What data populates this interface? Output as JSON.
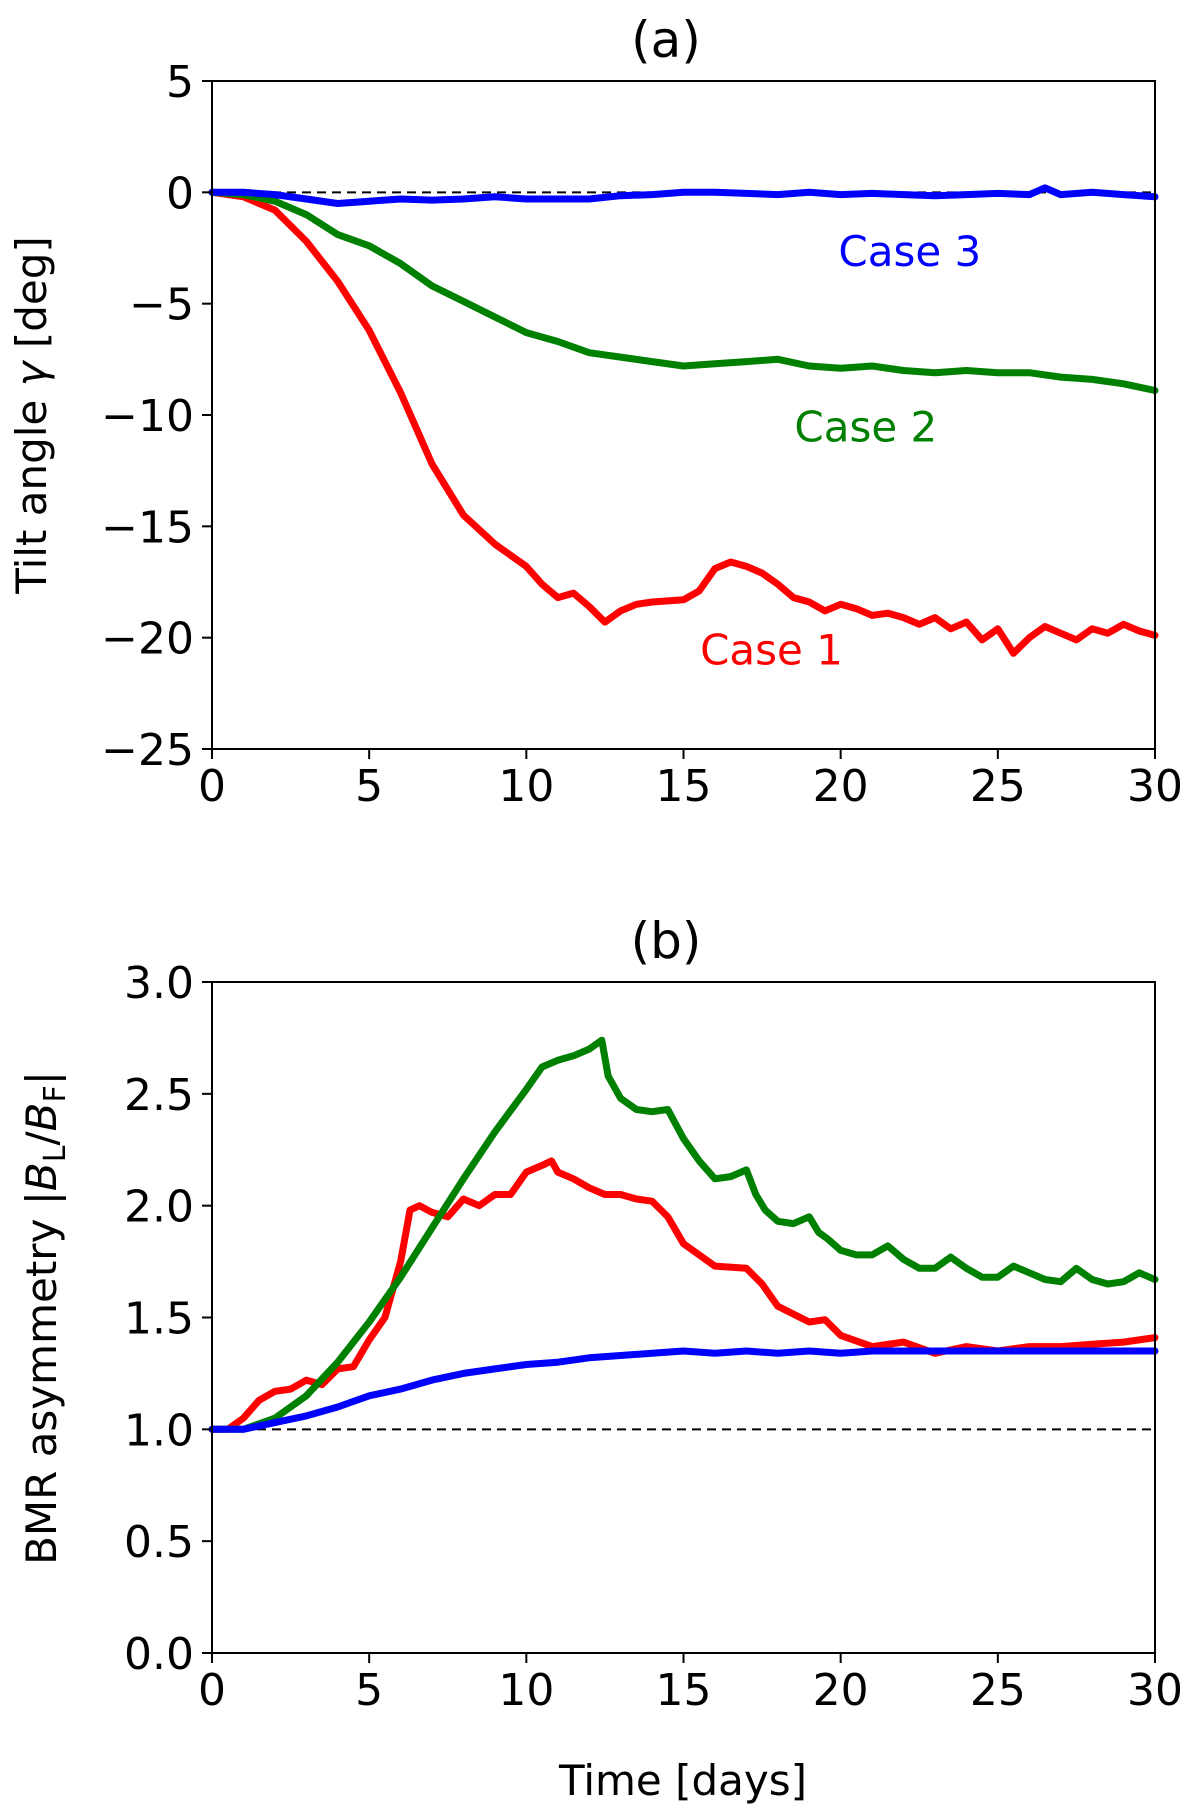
{
  "chart_data": [
    {
      "type": "line",
      "title": "(a)",
      "xlabel": "",
      "ylabel": "Tilt angle γ [deg]",
      "ylabel_parts": {
        "main": "Tilt angle ",
        "symbol": "γ",
        "unit": " [deg]"
      },
      "xlim": [
        0,
        30
      ],
      "ylim": [
        -25,
        5
      ],
      "xticks": [
        0,
        5,
        10,
        15,
        20,
        25,
        30
      ],
      "yticks": [
        5,
        0,
        -5,
        -10,
        -15,
        -20,
        -25
      ],
      "ytick_labels": [
        "5",
        "0",
        "−5",
        "−10",
        "−15",
        "−20",
        "−25"
      ],
      "reference_line": {
        "y": 0,
        "style": "dashed"
      },
      "series": [
        {
          "name": "Case 1",
          "color": "#ff0000",
          "x": [
            0,
            1,
            2,
            3,
            4,
            5,
            6,
            7,
            8,
            9,
            10,
            10.5,
            11,
            11.5,
            12,
            12.5,
            13,
            13.5,
            14,
            15,
            15.5,
            16,
            16.5,
            17,
            17.5,
            18,
            18.5,
            19,
            19.5,
            20,
            20.5,
            21,
            21.5,
            22,
            22.5,
            23,
            23.5,
            24,
            24.5,
            25,
            25.5,
            26,
            26.5,
            27,
            27.5,
            28,
            28.5,
            29,
            29.5,
            30
          ],
          "y": [
            0,
            -0.2,
            -0.8,
            -2.2,
            -4.0,
            -6.2,
            -9.0,
            -12.2,
            -14.5,
            -15.8,
            -16.8,
            -17.6,
            -18.2,
            -18.0,
            -18.6,
            -19.3,
            -18.8,
            -18.5,
            -18.4,
            -18.3,
            -17.9,
            -16.9,
            -16.6,
            -16.8,
            -17.1,
            -17.6,
            -18.2,
            -18.4,
            -18.8,
            -18.5,
            -18.7,
            -19.0,
            -18.9,
            -19.1,
            -19.4,
            -19.1,
            -19.6,
            -19.3,
            -20.1,
            -19.6,
            -20.7,
            -20.0,
            -19.5,
            -19.8,
            -20.1,
            -19.6,
            -19.8,
            -19.4,
            -19.7,
            -19.9
          ]
        },
        {
          "name": "Case 2",
          "color": "#008000",
          "x": [
            0,
            1,
            2,
            3,
            4,
            5,
            6,
            7,
            8,
            9,
            10,
            11,
            12,
            13,
            14,
            15,
            16,
            17,
            18,
            19,
            20,
            21,
            22,
            23,
            24,
            25,
            26,
            27,
            28,
            29,
            30
          ],
          "y": [
            0,
            -0.1,
            -0.4,
            -1.0,
            -1.9,
            -2.4,
            -3.2,
            -4.2,
            -4.9,
            -5.6,
            -6.3,
            -6.7,
            -7.2,
            -7.4,
            -7.6,
            -7.8,
            -7.7,
            -7.6,
            -7.5,
            -7.8,
            -7.9,
            -7.8,
            -8.0,
            -8.1,
            -8.0,
            -8.1,
            -8.1,
            -8.3,
            -8.4,
            -8.6,
            -8.9
          ]
        },
        {
          "name": "Case 3",
          "color": "#0000ff",
          "x": [
            0,
            1,
            2,
            3,
            4,
            5,
            6,
            7,
            8,
            9,
            10,
            11,
            12,
            13,
            14,
            15,
            16,
            17,
            18,
            19,
            20,
            21,
            22,
            23,
            24,
            25,
            26,
            26.5,
            27,
            28,
            29,
            30
          ],
          "y": [
            0,
            0,
            -0.1,
            -0.3,
            -0.5,
            -0.4,
            -0.3,
            -0.35,
            -0.3,
            -0.2,
            -0.3,
            -0.3,
            -0.3,
            -0.15,
            -0.1,
            0,
            0,
            -0.05,
            -0.1,
            0,
            -0.1,
            -0.05,
            -0.1,
            -0.15,
            -0.1,
            -0.05,
            -0.1,
            0.2,
            -0.1,
            0,
            -0.1,
            -0.2
          ]
        }
      ],
      "annotations": [
        {
          "text": "Case 3",
          "x": 22.2,
          "y": -3.3,
          "color": "#0000ff"
        },
        {
          "text": "Case 2",
          "x": 20.8,
          "y": -11.2,
          "color": "#008000"
        },
        {
          "text": "Case 1",
          "x": 17.8,
          "y": -21.2,
          "color": "#ff0000"
        }
      ]
    },
    {
      "type": "line",
      "title": "(b)",
      "xlabel": "Time [days]",
      "ylabel": "BMR asymmetry |B_L/B_F|",
      "ylabel_parts": {
        "main": "BMR asymmetry |",
        "b1": "B",
        "sub1": "L",
        "slash": "/",
        "b2": "B",
        "sub2": "F",
        "end": "|"
      },
      "xlim": [
        0,
        30
      ],
      "ylim": [
        0.0,
        3.0
      ],
      "xticks": [
        0,
        5,
        10,
        15,
        20,
        25,
        30
      ],
      "yticks": [
        3.0,
        2.5,
        2.0,
        1.5,
        1.0,
        0.5,
        0.0
      ],
      "ytick_labels": [
        "3.0",
        "2.5",
        "2.0",
        "1.5",
        "1.0",
        "0.5",
        "0.0"
      ],
      "reference_line": {
        "y": 1.0,
        "style": "dashed"
      },
      "series": [
        {
          "name": "Case 1",
          "color": "#ff0000",
          "x": [
            0,
            0.5,
            1,
            1.5,
            2,
            2.5,
            3,
            3.5,
            4,
            4.5,
            5,
            5.5,
            6,
            6.3,
            6.6,
            7,
            7.5,
            8,
            8.5,
            9,
            9.5,
            10,
            10.5,
            10.8,
            11,
            11.5,
            12,
            12.5,
            13,
            13.5,
            14,
            14.5,
            15,
            16,
            17,
            17.5,
            18,
            19,
            19.5,
            20,
            21,
            22,
            23,
            24,
            25,
            26,
            27,
            28,
            29,
            30
          ],
          "y": [
            1.0,
            1.0,
            1.05,
            1.13,
            1.17,
            1.18,
            1.22,
            1.2,
            1.27,
            1.28,
            1.4,
            1.5,
            1.75,
            1.98,
            2.0,
            1.97,
            1.95,
            2.03,
            2.0,
            2.05,
            2.05,
            2.15,
            2.18,
            2.2,
            2.15,
            2.12,
            2.08,
            2.05,
            2.05,
            2.03,
            2.02,
            1.95,
            1.83,
            1.73,
            1.72,
            1.65,
            1.55,
            1.48,
            1.49,
            1.42,
            1.37,
            1.39,
            1.34,
            1.37,
            1.35,
            1.37,
            1.37,
            1.38,
            1.39,
            1.41
          ]
        },
        {
          "name": "Case 2",
          "color": "#008000",
          "x": [
            0,
            1,
            2,
            3,
            4,
            5,
            6,
            7,
            8,
            9,
            10,
            10.5,
            11,
            11.5,
            12,
            12.4,
            12.6,
            13,
            13.5,
            14,
            14.5,
            15,
            15.5,
            16,
            16.5,
            17,
            17.3,
            17.6,
            18,
            18.5,
            19,
            19.3,
            19.6,
            20,
            20.5,
            21,
            21.5,
            22,
            22.5,
            23,
            23.5,
            24,
            24.5,
            25,
            25.5,
            26,
            26.5,
            27,
            27.5,
            28,
            28.5,
            29,
            29.5,
            30
          ],
          "y": [
            1.0,
            1.0,
            1.05,
            1.15,
            1.3,
            1.48,
            1.68,
            1.9,
            2.12,
            2.33,
            2.52,
            2.62,
            2.65,
            2.67,
            2.7,
            2.74,
            2.58,
            2.48,
            2.43,
            2.42,
            2.43,
            2.3,
            2.2,
            2.12,
            2.13,
            2.16,
            2.05,
            1.98,
            1.93,
            1.92,
            1.95,
            1.88,
            1.85,
            1.8,
            1.78,
            1.78,
            1.82,
            1.76,
            1.72,
            1.72,
            1.77,
            1.72,
            1.68,
            1.68,
            1.73,
            1.7,
            1.67,
            1.66,
            1.72,
            1.67,
            1.65,
            1.66,
            1.7,
            1.67
          ]
        },
        {
          "name": "Case 3",
          "color": "#0000ff",
          "x": [
            0,
            1,
            2,
            3,
            4,
            5,
            6,
            7,
            8,
            9,
            10,
            11,
            12,
            13,
            14,
            15,
            16,
            17,
            18,
            19,
            20,
            21,
            22,
            23,
            24,
            25,
            26,
            27,
            28,
            29,
            30
          ],
          "y": [
            1.0,
            1.0,
            1.03,
            1.06,
            1.1,
            1.15,
            1.18,
            1.22,
            1.25,
            1.27,
            1.29,
            1.3,
            1.32,
            1.33,
            1.34,
            1.35,
            1.34,
            1.35,
            1.34,
            1.35,
            1.34,
            1.35,
            1.35,
            1.35,
            1.35,
            1.35,
            1.35,
            1.35,
            1.35,
            1.35,
            1.35
          ]
        }
      ]
    }
  ]
}
